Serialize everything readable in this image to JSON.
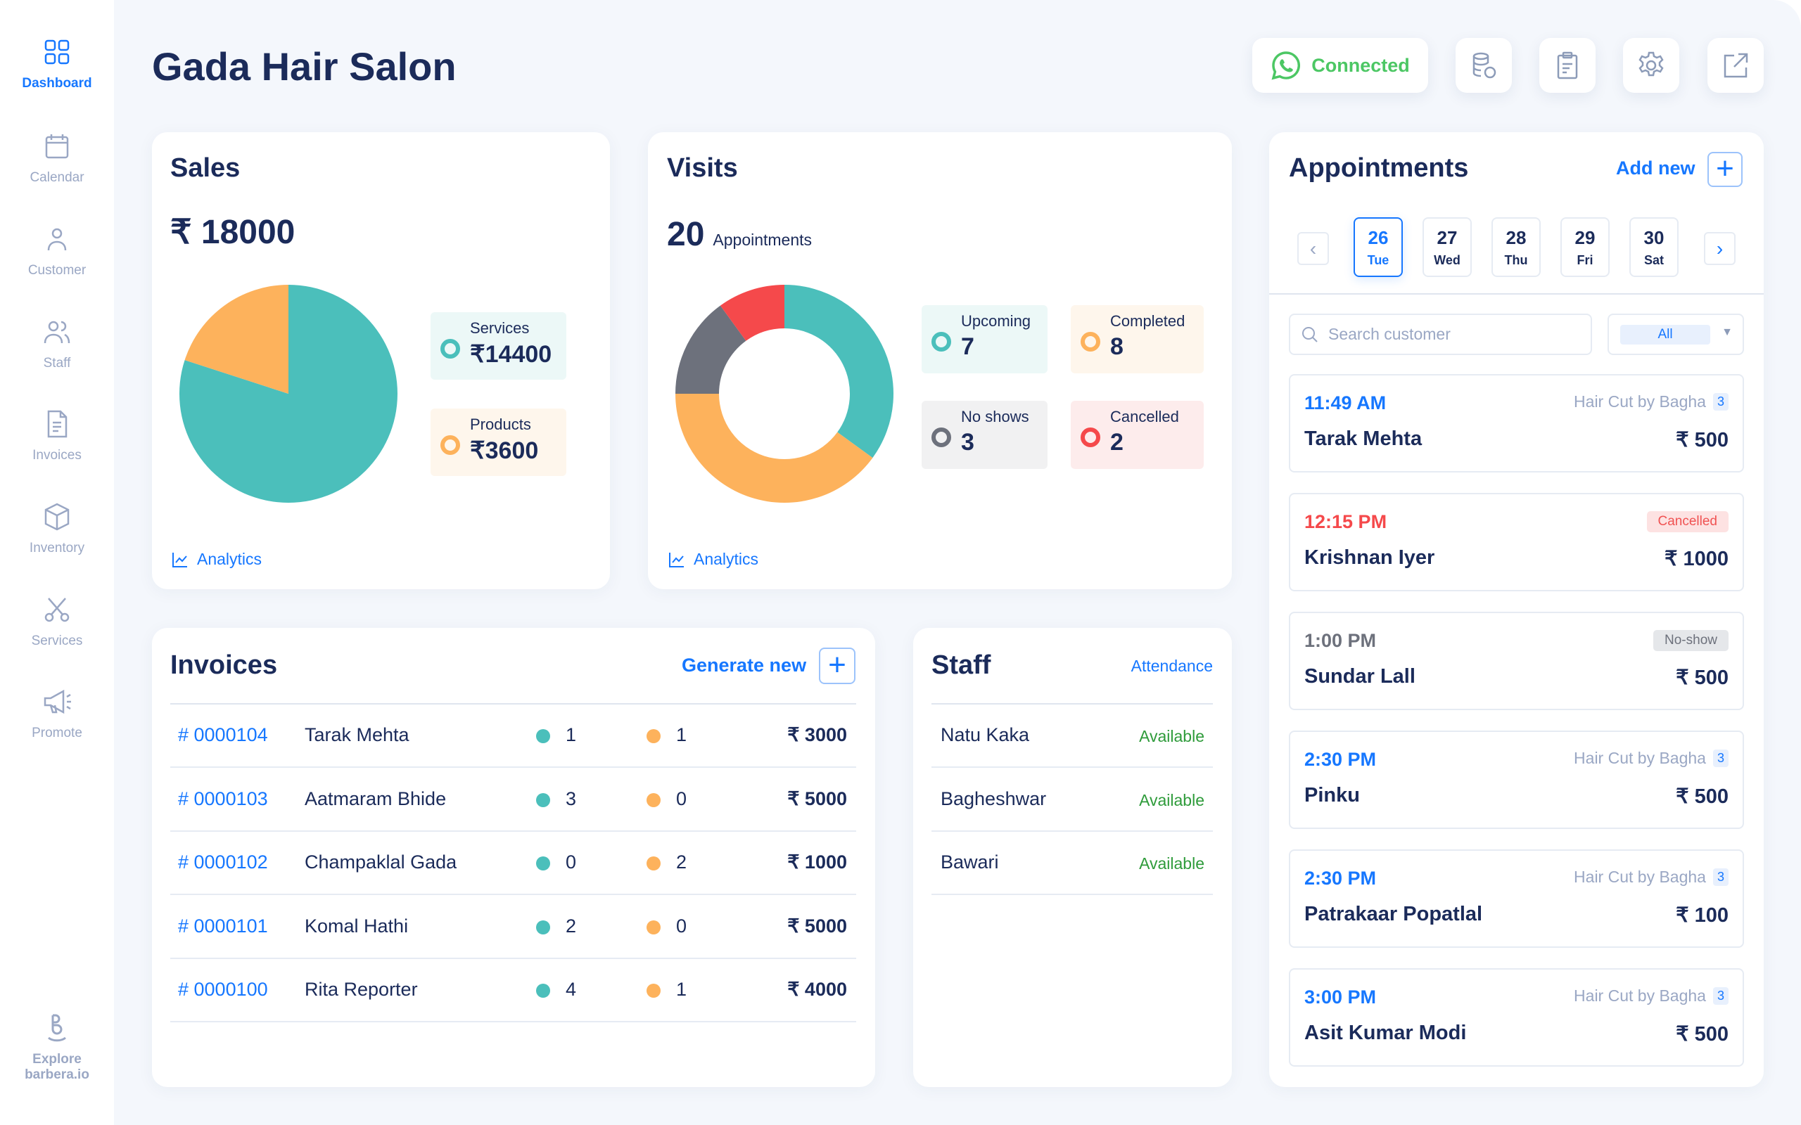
{
  "sidebar": {
    "items": [
      {
        "label": "Dashboard",
        "icon": "dashboard-grid-icon",
        "active": true
      },
      {
        "label": "Calendar",
        "icon": "calendar-icon"
      },
      {
        "label": "Customer",
        "icon": "user-icon"
      },
      {
        "label": "Staff",
        "icon": "users-icon"
      },
      {
        "label": "Invoices",
        "icon": "document-icon"
      },
      {
        "label": "Inventory",
        "icon": "box-icon"
      },
      {
        "label": "Services",
        "icon": "scissors-icon"
      },
      {
        "label": "Promote",
        "icon": "megaphone-icon"
      }
    ],
    "explore_line1": "Explore",
    "explore_line2": "barbera.io"
  },
  "header": {
    "title": "Gada Hair Salon",
    "whatsapp_status": "Connected",
    "icons": [
      "database-coins-icon",
      "clipboard-icon",
      "gear-icon",
      "external-link-icon"
    ]
  },
  "colors": {
    "teal": "#4bbfbb",
    "orange": "#fdb25c",
    "grey": "#6d717c",
    "red": "#f5494b",
    "blue": "#1677ff",
    "navy": "#1b2b5a",
    "whatsapp": "#4cc764",
    "available": "#2e9b3a"
  },
  "sales": {
    "title": "Sales",
    "total": "₹ 18000",
    "analytics": "Analytics",
    "legend": [
      {
        "label": "Services",
        "value": "₹14400"
      },
      {
        "label": "Products",
        "value": "₹3600"
      }
    ]
  },
  "visits": {
    "title": "Visits",
    "count": "20",
    "count_label": "Appointments",
    "analytics": "Analytics",
    "legend": [
      {
        "label": "Upcoming",
        "value": "7"
      },
      {
        "label": "Completed",
        "value": "8"
      },
      {
        "label": "No shows",
        "value": "3"
      },
      {
        "label": "Cancelled",
        "value": "2"
      }
    ]
  },
  "chart_data": [
    {
      "type": "pie",
      "categories": [
        "Services",
        "Products"
      ],
      "values": [
        14400,
        3600
      ]
    },
    {
      "type": "pie",
      "donut": true,
      "categories": [
        "Upcoming",
        "Completed",
        "No shows",
        "Cancelled"
      ],
      "values": [
        7,
        8,
        3,
        2
      ]
    }
  ],
  "appointments": {
    "title": "Appointments",
    "add_new": "Add new",
    "dates": [
      {
        "day": "26",
        "weekday": "Tue",
        "selected": true
      },
      {
        "day": "27",
        "weekday": "Wed"
      },
      {
        "day": "28",
        "weekday": "Thu"
      },
      {
        "day": "29",
        "weekday": "Fri"
      },
      {
        "day": "30",
        "weekday": "Sat"
      }
    ],
    "search_placeholder": "Search customer",
    "filter": "All",
    "items": [
      {
        "time": "11:49 AM",
        "service": "Hair Cut by Bagha",
        "count": "3",
        "name": "Tarak Mehta",
        "price": "₹ 500",
        "status": "upcoming"
      },
      {
        "time": "12:15 PM",
        "badge": "Cancelled",
        "name": "Krishnan Iyer",
        "price": "₹ 1000",
        "status": "cancelled"
      },
      {
        "time": "1:00 PM",
        "badge": "No-show",
        "name": "Sundar Lall",
        "price": "₹ 500",
        "status": "noshow"
      },
      {
        "time": "2:30 PM",
        "service": "Hair Cut by Bagha",
        "count": "3",
        "name": "Pinku",
        "price": "₹ 500",
        "status": "upcoming"
      },
      {
        "time": "2:30 PM",
        "service": "Hair Cut by Bagha",
        "count": "3",
        "name": "Patrakaar Popatlal",
        "price": "₹ 100",
        "status": "upcoming"
      },
      {
        "time": "3:00 PM",
        "service": "Hair Cut by Bagha",
        "count": "3",
        "name": "Asit Kumar Modi",
        "price": "₹ 500",
        "status": "upcoming"
      }
    ]
  },
  "invoices": {
    "title": "Invoices",
    "generate_new": "Generate new",
    "rows": [
      {
        "id": "# 0000104",
        "name": "Tarak Mehta",
        "services": "1",
        "products": "1",
        "amount": "₹ 3000"
      },
      {
        "id": "# 0000103",
        "name": "Aatmaram Bhide",
        "services": "3",
        "products": "0",
        "amount": "₹ 5000"
      },
      {
        "id": "# 0000102",
        "name": "Champaklal Gada",
        "services": "0",
        "products": "2",
        "amount": "₹ 1000"
      },
      {
        "id": "# 0000101",
        "name": "Komal Hathi",
        "services": "2",
        "products": "0",
        "amount": "₹ 5000"
      },
      {
        "id": "# 0000100",
        "name": "Rita Reporter",
        "services": "4",
        "products": "1",
        "amount": "₹ 4000"
      }
    ]
  },
  "staff": {
    "title": "Staff",
    "attendance": "Attendance",
    "rows": [
      {
        "name": "Natu Kaka",
        "status": "Available"
      },
      {
        "name": "Bagheshwar",
        "status": "Available"
      },
      {
        "name": "Bawari",
        "status": "Available"
      }
    ]
  }
}
